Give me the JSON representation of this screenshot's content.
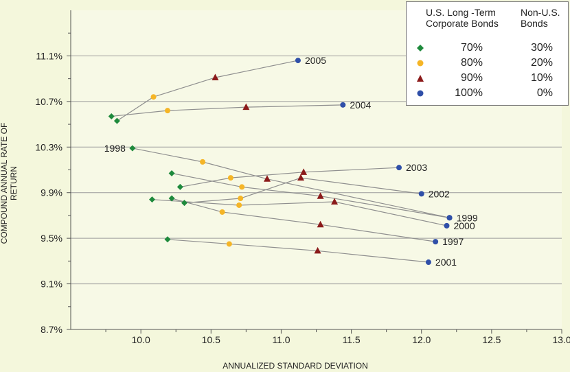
{
  "chart_data": {
    "type": "scatter",
    "xlabel": "ANNUALIZED STANDARD DEVIATION",
    "ylabel": "COMPOUND ANNUAL RATE OF RETURN",
    "xlim": [
      9.5,
      13.0
    ],
    "ylim": [
      8.7,
      11.5
    ],
    "x_ticks": [
      "10.0",
      "10.5",
      "11.0",
      "11.5",
      "12.0",
      "12.5",
      "13.0"
    ],
    "y_ticks": [
      "8.7%",
      "9.1%",
      "9.5%",
      "9.9%",
      "10.3%",
      "10.7%",
      "11.1%"
    ],
    "grid": "horizontal",
    "legend_position": "top-right",
    "legend": {
      "header_col1": "U.S. Long -Term\nCorporate Bonds",
      "header_col2": "Non-U.S.\nBonds",
      "rows": [
        {
          "marker": "diamond",
          "color": "#1e8a3c",
          "col1": "70%",
          "col2": "30%"
        },
        {
          "marker": "circle",
          "color": "#f5b526",
          "col1": "80%",
          "col2": "20%"
        },
        {
          "marker": "triangle",
          "color": "#8b1a1a",
          "col1": "90%",
          "col2": "10%"
        },
        {
          "marker": "circle",
          "color": "#2f4fa8",
          "col1": "100%",
          "col2": "0%"
        }
      ]
    },
    "series_styles": [
      {
        "marker": "diamond",
        "color": "#1e8a3c"
      },
      {
        "marker": "circle",
        "color": "#f5b526"
      },
      {
        "marker": "triangle",
        "color": "#8b1a1a"
      },
      {
        "marker": "circle",
        "color": "#2f4fa8"
      }
    ],
    "years": [
      {
        "year": "2005",
        "label_side": "right",
        "points": [
          [
            9.83,
            10.53
          ],
          [
            10.09,
            10.74
          ],
          [
            10.53,
            10.91
          ],
          [
            11.12,
            11.06
          ]
        ]
      },
      {
        "year": "2004",
        "label_side": "right",
        "points": [
          [
            9.79,
            10.57
          ],
          [
            10.19,
            10.62
          ],
          [
            10.75,
            10.65
          ],
          [
            11.44,
            10.67
          ]
        ]
      },
      {
        "year": "1998",
        "label_side": "left",
        "points": [
          [
            9.94,
            10.29
          ],
          [
            10.44,
            10.17
          ],
          [
            10.9,
            10.02
          ],
          [
            12.2,
            9.68
          ]
        ]
      },
      {
        "year": "2003",
        "label_side": "right",
        "points": [
          [
            10.28,
            9.95
          ],
          [
            10.64,
            10.03
          ],
          [
            11.16,
            10.08
          ],
          [
            11.84,
            10.12
          ]
        ]
      },
      {
        "year": "2002",
        "label_side": "right",
        "points": [
          [
            10.31,
            9.81
          ],
          [
            10.71,
            9.85
          ],
          [
            11.14,
            10.03
          ],
          [
            12.0,
            9.89
          ]
        ]
      },
      {
        "year": "1999",
        "label_side": "right",
        "points": [
          [
            10.22,
            10.07
          ],
          [
            10.72,
            9.95
          ],
          [
            11.28,
            9.87
          ],
          [
            12.2,
            9.68
          ]
        ]
      },
      {
        "year": "2000",
        "label_side": "right",
        "points": [
          [
            10.08,
            9.84
          ],
          [
            10.7,
            9.79
          ],
          [
            11.38,
            9.82
          ],
          [
            12.18,
            9.61
          ]
        ]
      },
      {
        "year": "1997",
        "label_side": "right",
        "points": [
          [
            10.22,
            9.85
          ],
          [
            10.58,
            9.73
          ],
          [
            11.28,
            9.62
          ],
          [
            12.1,
            9.47
          ]
        ]
      },
      {
        "year": "2001",
        "label_side": "right",
        "points": [
          [
            10.19,
            9.49
          ],
          [
            10.63,
            9.45
          ],
          [
            11.26,
            9.39
          ],
          [
            12.05,
            9.29
          ]
        ]
      }
    ]
  }
}
